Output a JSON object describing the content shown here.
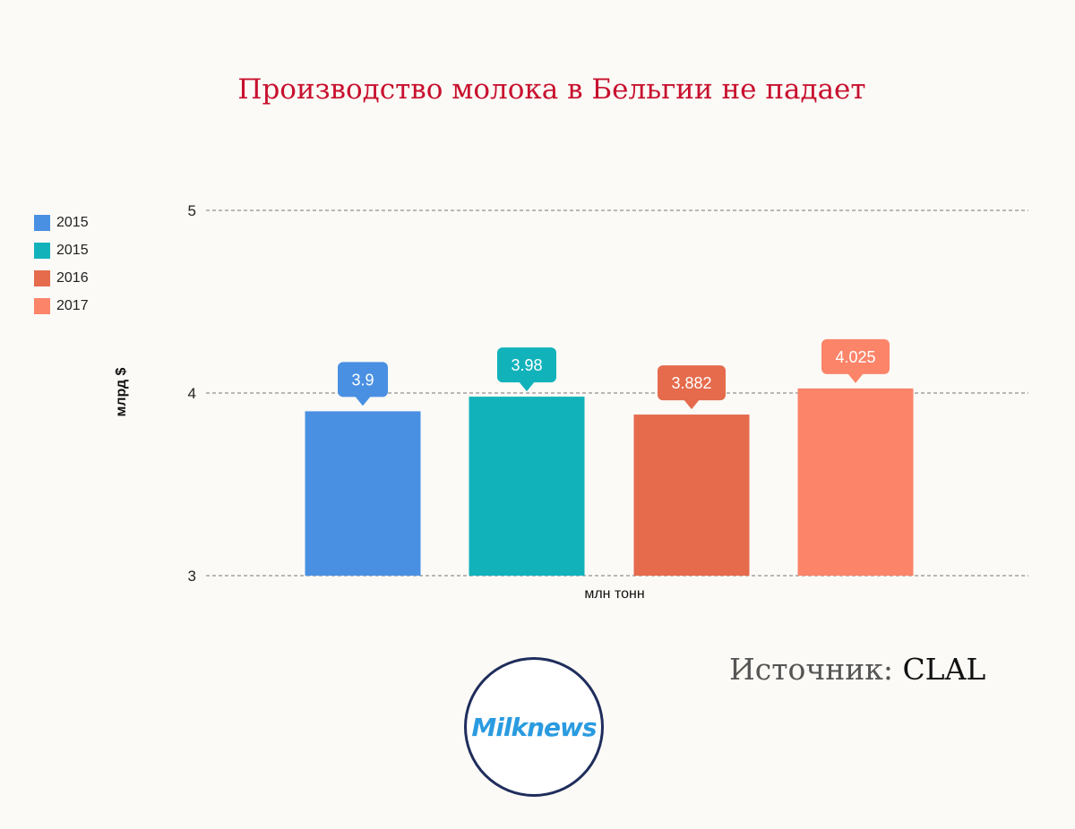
{
  "chart_data": {
    "type": "bar",
    "title": "Производство молока в Бельгии не падает",
    "xlabel": "млн тонн",
    "ylabel": "млрд $",
    "ylim": [
      3,
      5
    ],
    "yticks": [
      "3",
      "4",
      "5"
    ],
    "grid": true,
    "legend_position": "left",
    "series": [
      {
        "name": "2015",
        "value": 3.9,
        "label": "3.9",
        "color": "#4a90e2"
      },
      {
        "name": "2015",
        "value": 3.98,
        "label": "3.98",
        "color": "#12b2bb"
      },
      {
        "name": "2016",
        "value": 3.882,
        "label": "3.882",
        "color": "#e56b4c"
      },
      {
        "name": "2017",
        "value": 4.025,
        "label": "4.025",
        "color": "#fb8469"
      }
    ]
  },
  "source": {
    "prefix": "Источник: ",
    "name": "CLAL"
  },
  "logo": {
    "text": "Milknews"
  }
}
